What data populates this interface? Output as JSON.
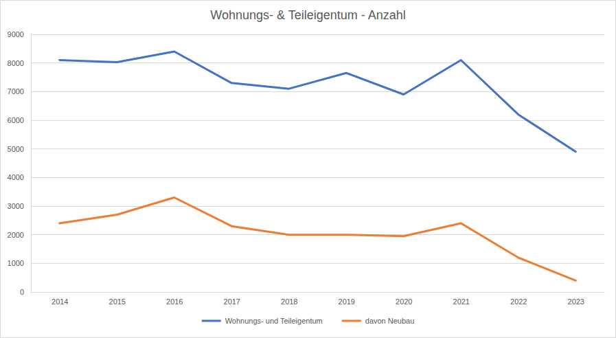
{
  "chart_data": {
    "type": "line",
    "title": "Wohnungs- & Teileigentum - Anzahl",
    "categories": [
      "2014",
      "2015",
      "2016",
      "2017",
      "2018",
      "2019",
      "2020",
      "2021",
      "2022",
      "2023"
    ],
    "series": [
      {
        "name": "Wohnungs- und Teileigentum",
        "color": "#4472c4",
        "values": [
          8100,
          8030,
          8400,
          7300,
          7100,
          7650,
          6900,
          8100,
          6200,
          4900
        ]
      },
      {
        "name": "davon Neubau",
        "color": "#ed7d31",
        "values": [
          2400,
          2700,
          3300,
          2300,
          2000,
          2000,
          1950,
          2400,
          1200,
          400
        ]
      }
    ],
    "ylim": [
      0,
      9000
    ],
    "yticks": [
      0,
      1000,
      2000,
      3000,
      4000,
      5000,
      6000,
      7000,
      8000,
      9000
    ],
    "grid": true,
    "legend": "bottom"
  }
}
